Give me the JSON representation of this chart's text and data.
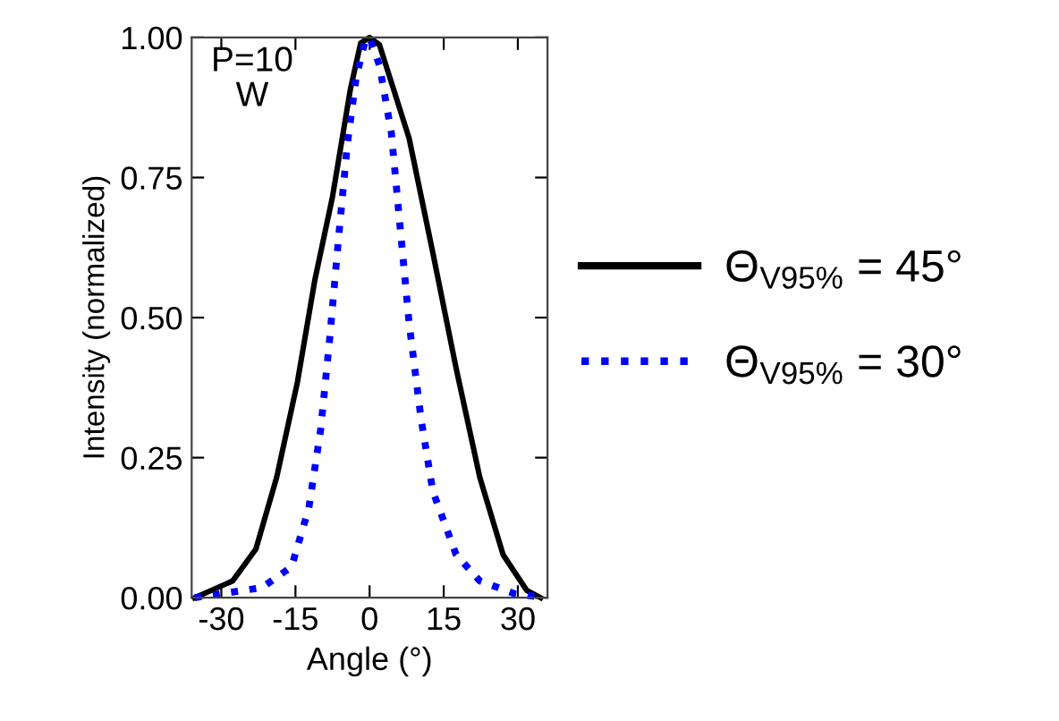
{
  "chart_data": {
    "type": "line",
    "xlabel": "Angle (°)",
    "ylabel": "Intensity (normalized)",
    "xlim": [
      -36,
      36
    ],
    "ylim": [
      0,
      1
    ],
    "xticks": [
      -30,
      -15,
      0,
      15,
      30
    ],
    "yticks": [
      {
        "value": 0,
        "label": "0.00"
      },
      {
        "value": 0.25,
        "label": "0.25"
      },
      {
        "value": 0.5,
        "label": "0.50"
      },
      {
        "value": 0.75,
        "label": "0.75"
      },
      {
        "value": 1,
        "label": "1.00"
      }
    ],
    "annotations": [
      "P=10\nW"
    ],
    "legend": "right",
    "grid": false,
    "series": [
      {
        "name": "Θ$_{V95%}$ = 45°",
        "color": "#000000",
        "line_style": "solid",
        "x": [
          -35.4,
          -27.7,
          -23,
          -18.8,
          -14.6,
          -11.1,
          -7.5,
          -3.9,
          -1.8,
          0,
          2.0,
          8,
          12.7,
          17.5,
          22.3,
          27,
          31.8,
          34.6
        ],
        "values": [
          0,
          0.03,
          0.087,
          0.215,
          0.385,
          0.566,
          0.716,
          0.907,
          0.99,
          1.0,
          0.987,
          0.82,
          0.62,
          0.41,
          0.215,
          0.077,
          0.013,
          0
        ]
      },
      {
        "name": "Θ$_{V95%}$ = 30°",
        "color": "#0000ff",
        "line_style": "dotted",
        "x": [
          -35.4,
          -21.8,
          -15.8,
          -12.3,
          -9.9,
          -8.1,
          -6.3,
          -4.5,
          -2.7,
          -1,
          0,
          2.0,
          4.4,
          6.2,
          8,
          10.4,
          12.8,
          17.5,
          22.3,
          29.4,
          35.4
        ],
        "values": [
          0,
          0.018,
          0.055,
          0.16,
          0.3,
          0.46,
          0.64,
          0.81,
          0.93,
          0.99,
          1.0,
          0.95,
          0.83,
          0.66,
          0.49,
          0.32,
          0.19,
          0.077,
          0.03,
          0.007,
          0
        ]
      }
    ]
  }
}
